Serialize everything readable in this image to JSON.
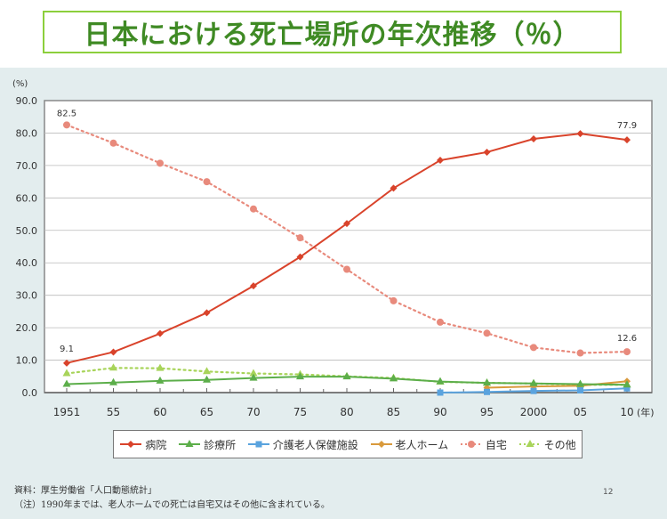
{
  "header": {
    "title": "日本における死亡場所の年次推移（％）"
  },
  "chart_data": {
    "type": "line",
    "title": "日本における死亡場所の年次推移（％）",
    "ylabel": "(%)",
    "xlabel": "(年)",
    "ylim": [
      0,
      90
    ],
    "yticks": [
      "0.0",
      "10.0",
      "20.0",
      "30.0",
      "40.0",
      "50.0",
      "60.0",
      "70.0",
      "80.0",
      "90.0"
    ],
    "categories": [
      "1951",
      "55",
      "60",
      "65",
      "70",
      "75",
      "80",
      "85",
      "90",
      "95",
      "2000",
      "05",
      "10"
    ],
    "series": [
      {
        "name": "病院",
        "color": "#d9432b",
        "marker": "diamond",
        "dash": false,
        "values": [
          9.1,
          12.5,
          18.2,
          24.6,
          32.9,
          41.8,
          52.1,
          63.0,
          71.6,
          74.1,
          78.2,
          79.8,
          77.9
        ]
      },
      {
        "name": "診療所",
        "color": "#5cae4a",
        "marker": "triangle",
        "dash": false,
        "values": [
          2.6,
          3.1,
          3.6,
          3.9,
          4.5,
          4.9,
          4.9,
          4.3,
          3.4,
          3.0,
          2.8,
          2.6,
          2.4
        ]
      },
      {
        "name": "介護老人保健施設",
        "color": "#5aa3de",
        "marker": "square",
        "dash": false,
        "values": [
          null,
          null,
          null,
          null,
          null,
          null,
          null,
          null,
          0.0,
          0.2,
          0.5,
          0.7,
          1.3
        ]
      },
      {
        "name": "老人ホーム",
        "color": "#d99a3c",
        "marker": "diamond",
        "dash": false,
        "values": [
          null,
          null,
          null,
          null,
          null,
          null,
          null,
          null,
          null,
          1.5,
          1.9,
          2.1,
          3.5
        ]
      },
      {
        "name": "自宅",
        "color": "#e88a7c",
        "marker": "circle",
        "dash": true,
        "values": [
          82.5,
          76.9,
          70.7,
          65.0,
          56.6,
          47.7,
          38.0,
          28.3,
          21.7,
          18.3,
          13.9,
          12.2,
          12.6
        ]
      },
      {
        "name": "その他",
        "color": "#a8d45a",
        "marker": "triangle",
        "dash": true,
        "values": [
          5.9,
          7.6,
          7.5,
          6.5,
          5.9,
          5.6,
          5.0,
          4.5,
          3.3,
          3.0,
          2.8,
          2.4,
          2.4
        ]
      }
    ],
    "annotations": [
      "82.5",
      "77.9",
      "9.1",
      "12.6"
    ],
    "grid": true,
    "legend_position": "bottom"
  },
  "footer": {
    "source": "資料：厚生労働省「人口動態統計」",
    "note": "（注）1990年までは、老人ホームでの死亡は自宅又はその他に含まれている。",
    "page": "12"
  }
}
